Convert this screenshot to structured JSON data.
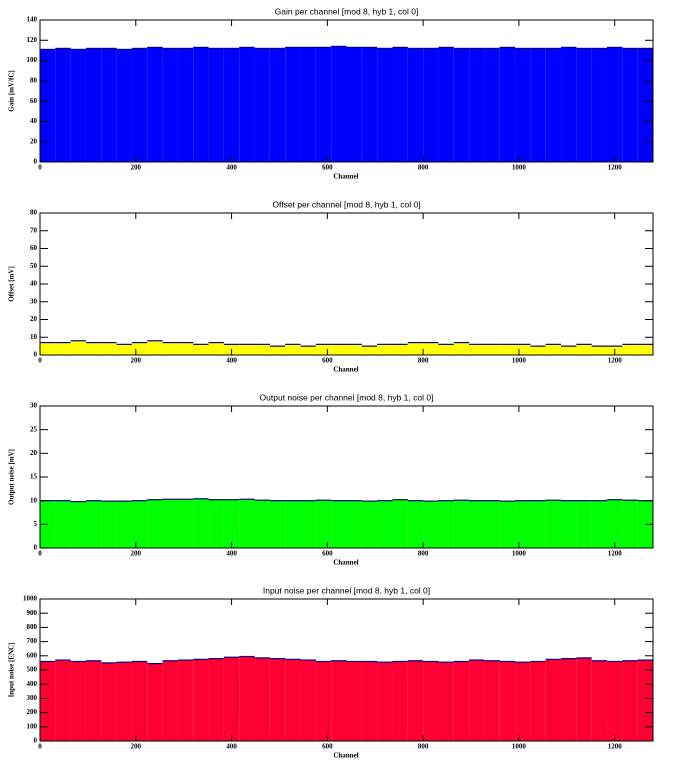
{
  "chart_data": [
    {
      "type": "histogram",
      "title": "Gain per channel [mod 8, hyb 1, col 0]",
      "xlabel": "Channel",
      "ylabel": "Gain [mV/fC]",
      "bins": [
        0,
        32,
        64,
        96,
        128,
        160,
        192,
        224,
        256,
        288,
        320,
        352,
        384,
        416,
        448,
        480,
        512,
        544,
        576,
        608,
        640,
        672,
        704,
        736,
        768,
        800,
        832,
        864,
        896,
        928,
        960,
        992,
        1024,
        1056,
        1088,
        1120,
        1152,
        1184,
        1216,
        1248,
        1280
      ],
      "counts": [
        111,
        112,
        111,
        112,
        112,
        111,
        112,
        113,
        112,
        112,
        113,
        112,
        112,
        113,
        112,
        112,
        113,
        113,
        113,
        114,
        113,
        113,
        112,
        113,
        112,
        112,
        113,
        112,
        112,
        112,
        113,
        112,
        112,
        112,
        113,
        112,
        112,
        113,
        112,
        112
      ],
      "color": "#0000ff",
      "edgecolor": "#000080",
      "xlim": [
        0,
        1280
      ],
      "ylim": [
        0,
        140
      ],
      "xticks": [
        0,
        200,
        400,
        600,
        800,
        1000,
        1200
      ],
      "yticks": [
        0,
        20,
        40,
        60,
        80,
        100,
        120,
        140
      ]
    },
    {
      "type": "histogram",
      "title": "Offset per channel [mod 8, hyb 1, col 0]",
      "xlabel": "Channel",
      "ylabel": "Offset [mV]",
      "bins": [
        0,
        32,
        64,
        96,
        128,
        160,
        192,
        224,
        256,
        288,
        320,
        352,
        384,
        416,
        448,
        480,
        512,
        544,
        576,
        608,
        640,
        672,
        704,
        736,
        768,
        800,
        832,
        864,
        896,
        928,
        960,
        992,
        1024,
        1056,
        1088,
        1120,
        1152,
        1184,
        1216,
        1248,
        1280
      ],
      "counts": [
        7,
        7,
        8,
        7,
        7,
        6,
        7,
        8,
        7,
        7,
        6,
        7,
        6,
        6,
        6,
        5,
        6,
        5,
        6,
        6,
        6,
        5,
        6,
        6,
        7,
        7,
        6,
        7,
        6,
        6,
        6,
        6,
        5,
        6,
        5,
        6,
        5,
        5,
        6,
        6
      ],
      "color": "#ffff00",
      "edgecolor": "#000080",
      "xlim": [
        0,
        1280
      ],
      "ylim": [
        0,
        80
      ],
      "xticks": [
        0,
        200,
        400,
        600,
        800,
        1000,
        1200
      ],
      "yticks": [
        0,
        10,
        20,
        30,
        40,
        50,
        60,
        70,
        80
      ]
    },
    {
      "type": "histogram",
      "title": "Output noise per channel [mod 8, hyb 1, col 0]",
      "xlabel": "Channel",
      "ylabel": "Output noise [mV]",
      "bins": [
        0,
        32,
        64,
        96,
        128,
        160,
        192,
        224,
        256,
        288,
        320,
        352,
        384,
        416,
        448,
        480,
        512,
        544,
        576,
        608,
        640,
        672,
        704,
        736,
        768,
        800,
        832,
        864,
        896,
        928,
        960,
        992,
        1024,
        1056,
        1088,
        1120,
        1152,
        1184,
        1216,
        1248,
        1280
      ],
      "counts": [
        10,
        10,
        9.8,
        10,
        9.9,
        9.9,
        10,
        10.2,
        10.3,
        10.3,
        10.4,
        10.2,
        10.2,
        10.3,
        10.1,
        10,
        10,
        10,
        10.1,
        10,
        10,
        9.9,
        10,
        10.2,
        10,
        9.9,
        10,
        10.1,
        10,
        10,
        9.9,
        10,
        10,
        10.1,
        10,
        10,
        10,
        10.2,
        10.1,
        10
      ],
      "color": "#00ff00",
      "edgecolor": "#000080",
      "xlim": [
        0,
        1280
      ],
      "ylim": [
        0,
        30
      ],
      "xticks": [
        0,
        200,
        400,
        600,
        800,
        1000,
        1200
      ],
      "yticks": [
        0,
        5,
        10,
        15,
        20,
        25,
        30
      ]
    },
    {
      "type": "histogram",
      "title": "Input noise per channel [mod 8, hyb 1, col 0]",
      "xlabel": "Channel",
      "ylabel": "Input noise [ENC]",
      "bins": [
        0,
        32,
        64,
        96,
        128,
        160,
        192,
        224,
        256,
        288,
        320,
        352,
        384,
        416,
        448,
        480,
        512,
        544,
        576,
        608,
        640,
        672,
        704,
        736,
        768,
        800,
        832,
        864,
        896,
        928,
        960,
        992,
        1024,
        1056,
        1088,
        1120,
        1152,
        1184,
        1216,
        1248,
        1280
      ],
      "counts": [
        560,
        570,
        560,
        565,
        550,
        555,
        560,
        545,
        565,
        570,
        575,
        580,
        590,
        595,
        585,
        580,
        575,
        570,
        560,
        565,
        560,
        560,
        555,
        560,
        565,
        560,
        555,
        560,
        570,
        565,
        560,
        555,
        560,
        575,
        580,
        585,
        565,
        560,
        565,
        570
      ],
      "color": "#ff0033",
      "edgecolor": "#000080",
      "xlim": [
        0,
        1280
      ],
      "ylim": [
        0,
        1000
      ],
      "xticks": [
        0,
        200,
        400,
        600,
        800,
        1000,
        1200
      ],
      "yticks": [
        0,
        100,
        200,
        300,
        400,
        500,
        600,
        700,
        800,
        900,
        1000
      ]
    }
  ]
}
